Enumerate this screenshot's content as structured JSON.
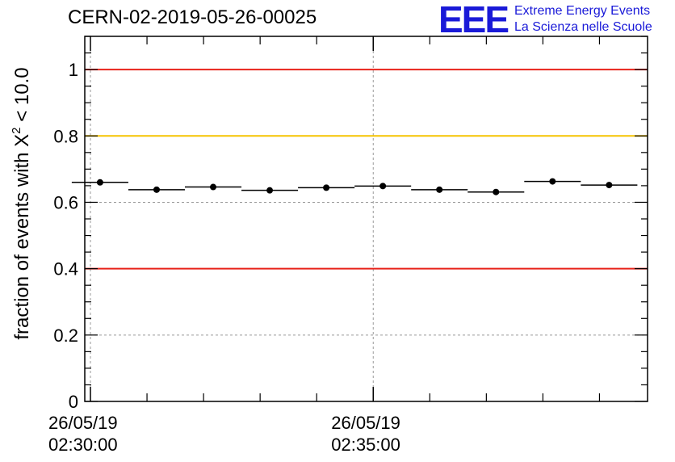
{
  "header": {
    "run_id": "CERN-02-2019-05-26-00025"
  },
  "logo": {
    "mark": "EEE",
    "line1": "Extreme Energy Events",
    "line2": "La Scienza nelle Scuole"
  },
  "chart_data": {
    "type": "scatter",
    "title": "CERN-02-2019-05-26-00025",
    "ylabel_text": "fraction of events with X",
    "ylabel_sup": "2",
    "ylabel_tail": "< 10.0",
    "ylim": [
      0,
      1.1
    ],
    "yticks": [
      0,
      0.2,
      0.4,
      0.6,
      0.8,
      1
    ],
    "ytick_labels": [
      "0",
      "0.2",
      "0.4",
      "0.6",
      "0.8",
      "1"
    ],
    "xlim_min": [
      -0.1,
      9.85
    ],
    "xtick_labels": [
      {
        "pos_min": 0,
        "date": "26/05/19",
        "time": "02:30:00"
      },
      {
        "pos_min": 5,
        "date": "26/05/19",
        "time": "02:35:00"
      }
    ],
    "x_minor_ticks_min": [
      1,
      2,
      3,
      4,
      6,
      7,
      8,
      9
    ],
    "grid": true,
    "bin_width_min": 1,
    "x": [
      "02:30:10",
      "02:31:10",
      "02:32:10",
      "02:33:10",
      "02:34:10",
      "02:35:10",
      "02:36:10",
      "02:37:10",
      "02:38:10",
      "02:39:10"
    ],
    "x_min": [
      0.17,
      1.17,
      2.17,
      3.17,
      4.17,
      5.17,
      6.17,
      7.17,
      8.17,
      9.17
    ],
    "values": [
      0.66,
      0.638,
      0.646,
      0.636,
      0.644,
      0.649,
      0.638,
      0.631,
      0.663,
      0.652
    ],
    "reference_lines": [
      {
        "y": 1.0,
        "color": "#e8231a"
      },
      {
        "y": 0.8,
        "color": "#f5c400"
      },
      {
        "y": 0.4,
        "color": "#e8231a"
      }
    ],
    "marker_color": "#000000"
  }
}
